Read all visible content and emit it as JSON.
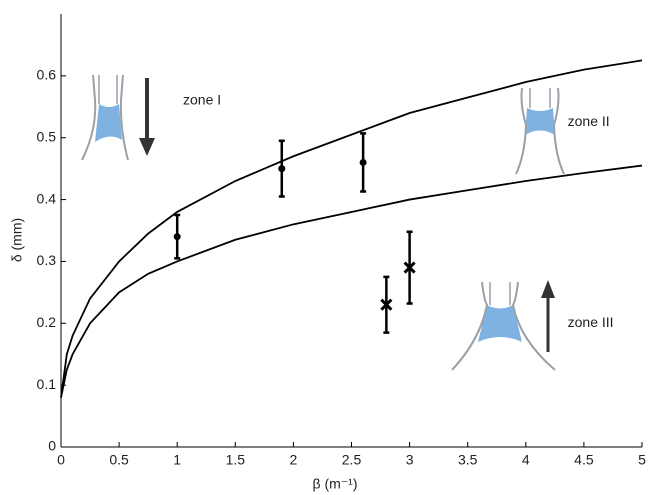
{
  "chart_data": {
    "type": "line",
    "xlabel": "β (m⁻¹)",
    "ylabel": "δ (mm)",
    "xlim": [
      0,
      5
    ],
    "ylim": [
      0,
      0.7
    ],
    "xticks": [
      0,
      0.5,
      1,
      1.5,
      2,
      2.5,
      3,
      3.5,
      4,
      4.5,
      5
    ],
    "yticks": [
      0,
      0.1,
      0.2,
      0.3,
      0.4,
      0.5,
      0.6
    ],
    "series": [
      {
        "color": "#000000",
        "x": [
          0,
          0.05,
          0.1,
          0.25,
          0.5,
          0.75,
          1,
          1.5,
          2,
          2.5,
          3,
          3.5,
          4,
          4.5,
          5
        ],
        "values": [
          0.08,
          0.15,
          0.18,
          0.24,
          0.3,
          0.345,
          0.38,
          0.43,
          0.47,
          0.505,
          0.54,
          0.565,
          0.59,
          0.61,
          0.625
        ]
      },
      {
        "color": "#000000",
        "x": [
          0,
          0.05,
          0.1,
          0.25,
          0.5,
          0.75,
          1,
          1.5,
          2,
          2.5,
          3,
          3.5,
          4,
          4.5,
          5
        ],
        "values": [
          0.08,
          0.125,
          0.15,
          0.2,
          0.25,
          0.28,
          0.3,
          0.335,
          0.36,
          0.38,
          0.4,
          0.415,
          0.43,
          0.443,
          0.455
        ]
      }
    ],
    "error_series": [
      {
        "marker": "circle",
        "color": "#000000",
        "x": [
          1,
          1.9,
          2.6
        ],
        "values": [
          0.34,
          0.45,
          0.46
        ],
        "errors": [
          0.035,
          0.045,
          0.047
        ]
      },
      {
        "marker": "cross",
        "color": "#000000",
        "x": [
          2.8,
          3
        ],
        "values": [
          0.23,
          0.29
        ],
        "errors": [
          0.045,
          0.058
        ]
      }
    ],
    "annotations": [
      {
        "text": "zone I",
        "x": 1.05,
        "y": 0.56
      },
      {
        "text": "zone II",
        "x": 4.36,
        "y": 0.525
      },
      {
        "text": "zone III",
        "x": 4.36,
        "y": 0.2
      }
    ]
  }
}
